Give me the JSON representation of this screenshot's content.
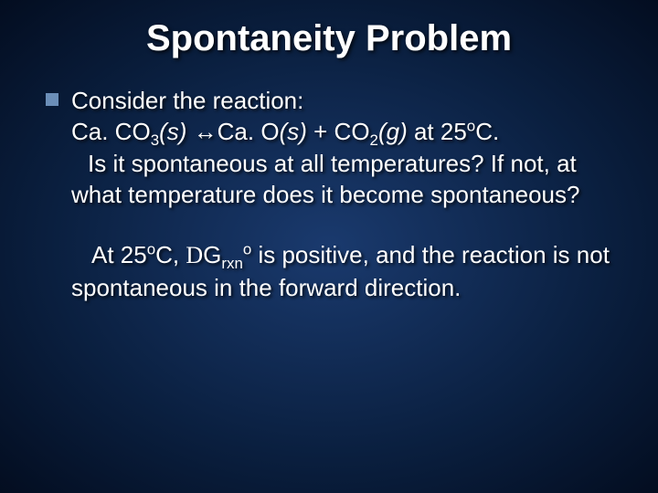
{
  "slide": {
    "title": "Spontaneity Problem",
    "intro": "Consider the reaction:",
    "reaction_prefix": "Ca. CO",
    "reaction_sub1": "3",
    "reaction_state1": "(s)",
    "reaction_arrow": " ↔",
    "reaction_mid": "Ca. O",
    "reaction_state2": "(s)",
    "reaction_plus": "  +  CO",
    "reaction_sub2": "2",
    "reaction_state3": "(g)",
    "reaction_at": "  at 25",
    "reaction_degree": "o",
    "reaction_end": "C.",
    "question": "Is it spontaneous at all temperatures?  If not, at what temperature does it become spontaneous?",
    "answer_at": "At 25",
    "answer_deg": "o",
    "answer_c": "C, ",
    "answer_delta": "D",
    "answer_g": "G",
    "answer_rxn": "rxn",
    "answer_sup_o": "o",
    "answer_rest": " is positive, and the reaction is not spontaneous in the forward direction."
  },
  "style": {
    "background_center": "#1a3a6e",
    "background_outer": "#030d20",
    "text_color": "#ffffff",
    "bullet_color": "#6b8eb8",
    "title_fontsize": 40,
    "body_fontsize": 26
  }
}
